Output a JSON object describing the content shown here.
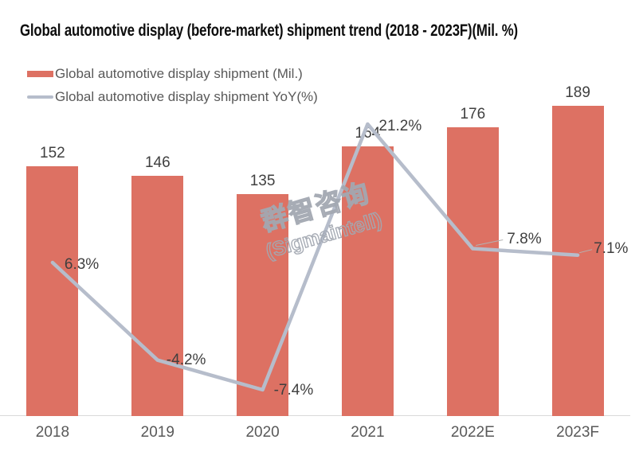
{
  "title": "Global automotive display (before-market) shipment trend (2018 - 2023F)(Mil. %)",
  "legend": [
    {
      "label": "Global automotive display shipment (Mil.)",
      "type": "bar"
    },
    {
      "label": "Global automotive display shipment YoY(%)",
      "type": "line"
    }
  ],
  "watermark": {
    "line1": "群智咨询",
    "line2": "(Sigmaintell)"
  },
  "colors": {
    "bar": "#dd7163",
    "line": "#b6bdcb",
    "leader": "#b3b3b3",
    "axis": "#d9d9d9",
    "value_label": "#404040",
    "category_label": "#595959",
    "title": "#0d0d0d"
  },
  "chart_data": {
    "type": "bar",
    "subtype": "bar+line combo",
    "title": "Global automotive display (before-market) shipment trend (2018 - 2023F)(Mil. %)",
    "categories": [
      "2018",
      "2019",
      "2020",
      "2021",
      "2022E",
      "2023F"
    ],
    "series": [
      {
        "name": "Global automotive display shipment (Mil.)",
        "type": "bar",
        "values": [
          152,
          146,
          135,
          164,
          176,
          189
        ],
        "data_labels": [
          "152",
          "146",
          "135",
          "164",
          "176",
          "189"
        ]
      },
      {
        "name": "Global automotive display shipment YoY(%)",
        "type": "line",
        "values": [
          6.3,
          -4.2,
          -7.4,
          21.2,
          7.8,
          7.1
        ],
        "data_labels": [
          "6.3%",
          "-4.2%",
          "-7.4%",
          "21.2%",
          "7.8%",
          "7.1%"
        ]
      }
    ],
    "xlabel": "",
    "ylabel": "",
    "y_axis_visible": false,
    "x_axis_line": true,
    "grid": false,
    "legend_position": "top-left",
    "bar_axis_min": 0
  }
}
